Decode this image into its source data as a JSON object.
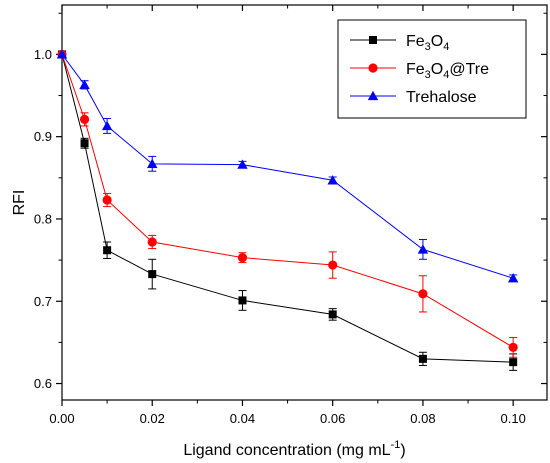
{
  "chart_data": {
    "type": "line",
    "xlabel": "Ligand concentration (mg mL",
    "xlabel_sup": "-1",
    "xlabel_end": ")",
    "ylabel": "RFI",
    "xlim": [
      0.0,
      0.1075
    ],
    "ylim": [
      0.58,
      1.06
    ],
    "x_ticks": [
      0.0,
      0.02,
      0.04,
      0.06,
      0.08,
      0.1
    ],
    "x_tick_labels": [
      "0.00",
      "0.02",
      "0.04",
      "0.06",
      "0.08",
      "0.10"
    ],
    "y_ticks": [
      0.6,
      0.7,
      0.8,
      0.9,
      1.0
    ],
    "y_tick_labels": [
      "0.6",
      "0.7",
      "0.8",
      "0.9",
      "1.0"
    ],
    "x_minor_step": 0.01,
    "y_minor_step": 0.05,
    "legend_position": "top-right",
    "series": [
      {
        "name": "Fe3O4",
        "name_parts": [
          "Fe",
          "3",
          "O",
          "4",
          ""
        ],
        "color": "#000000",
        "marker": "square",
        "x": [
          0.0,
          0.005,
          0.01,
          0.02,
          0.04,
          0.06,
          0.08,
          0.1
        ],
        "y": [
          1.0,
          0.892,
          0.762,
          0.733,
          0.701,
          0.684,
          0.63,
          0.626
        ],
        "err": [
          0.0,
          0.006,
          0.01,
          0.018,
          0.012,
          0.007,
          0.008,
          0.01
        ]
      },
      {
        "name": "Fe3O4@Tre",
        "name_parts": [
          "Fe",
          "3",
          "O",
          "4",
          "@Tre"
        ],
        "color": "#ff0000",
        "marker": "circle",
        "x": [
          0.0,
          0.005,
          0.01,
          0.02,
          0.04,
          0.06,
          0.08,
          0.1
        ],
        "y": [
          1.0,
          0.921,
          0.823,
          0.772,
          0.753,
          0.744,
          0.709,
          0.644
        ],
        "err": [
          0.0,
          0.008,
          0.008,
          0.008,
          0.006,
          0.016,
          0.022,
          0.012
        ]
      },
      {
        "name": "Trehalose",
        "name_parts": [
          "Trehalose",
          "",
          "",
          "",
          ""
        ],
        "color": "#0000ff",
        "marker": "triangle",
        "x": [
          0.0,
          0.005,
          0.01,
          0.02,
          0.04,
          0.06,
          0.08,
          0.1
        ],
        "y": [
          1.0,
          0.963,
          0.913,
          0.867,
          0.866,
          0.847,
          0.763,
          0.728
        ],
        "err": [
          0.0,
          0.005,
          0.009,
          0.009,
          0.004,
          0.004,
          0.012,
          0.004
        ]
      }
    ]
  }
}
